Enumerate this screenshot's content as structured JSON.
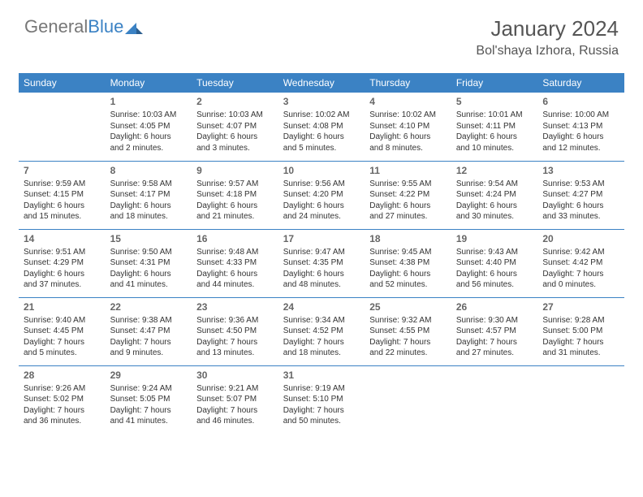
{
  "brand": {
    "part1": "General",
    "part2": "Blue"
  },
  "title": "January 2024",
  "location": "Bol'shaya Izhora, Russia",
  "colors": {
    "accent": "#3b82c4",
    "text": "#333333",
    "muted": "#666666",
    "bg": "#ffffff"
  },
  "weekdays": [
    "Sunday",
    "Monday",
    "Tuesday",
    "Wednesday",
    "Thursday",
    "Friday",
    "Saturday"
  ],
  "weeks": [
    [
      null,
      {
        "d": "1",
        "sr": "Sunrise: 10:03 AM",
        "ss": "Sunset: 4:05 PM",
        "dl1": "Daylight: 6 hours",
        "dl2": "and 2 minutes."
      },
      {
        "d": "2",
        "sr": "Sunrise: 10:03 AM",
        "ss": "Sunset: 4:07 PM",
        "dl1": "Daylight: 6 hours",
        "dl2": "and 3 minutes."
      },
      {
        "d": "3",
        "sr": "Sunrise: 10:02 AM",
        "ss": "Sunset: 4:08 PM",
        "dl1": "Daylight: 6 hours",
        "dl2": "and 5 minutes."
      },
      {
        "d": "4",
        "sr": "Sunrise: 10:02 AM",
        "ss": "Sunset: 4:10 PM",
        "dl1": "Daylight: 6 hours",
        "dl2": "and 8 minutes."
      },
      {
        "d": "5",
        "sr": "Sunrise: 10:01 AM",
        "ss": "Sunset: 4:11 PM",
        "dl1": "Daylight: 6 hours",
        "dl2": "and 10 minutes."
      },
      {
        "d": "6",
        "sr": "Sunrise: 10:00 AM",
        "ss": "Sunset: 4:13 PM",
        "dl1": "Daylight: 6 hours",
        "dl2": "and 12 minutes."
      }
    ],
    [
      {
        "d": "7",
        "sr": "Sunrise: 9:59 AM",
        "ss": "Sunset: 4:15 PM",
        "dl1": "Daylight: 6 hours",
        "dl2": "and 15 minutes."
      },
      {
        "d": "8",
        "sr": "Sunrise: 9:58 AM",
        "ss": "Sunset: 4:17 PM",
        "dl1": "Daylight: 6 hours",
        "dl2": "and 18 minutes."
      },
      {
        "d": "9",
        "sr": "Sunrise: 9:57 AM",
        "ss": "Sunset: 4:18 PM",
        "dl1": "Daylight: 6 hours",
        "dl2": "and 21 minutes."
      },
      {
        "d": "10",
        "sr": "Sunrise: 9:56 AM",
        "ss": "Sunset: 4:20 PM",
        "dl1": "Daylight: 6 hours",
        "dl2": "and 24 minutes."
      },
      {
        "d": "11",
        "sr": "Sunrise: 9:55 AM",
        "ss": "Sunset: 4:22 PM",
        "dl1": "Daylight: 6 hours",
        "dl2": "and 27 minutes."
      },
      {
        "d": "12",
        "sr": "Sunrise: 9:54 AM",
        "ss": "Sunset: 4:24 PM",
        "dl1": "Daylight: 6 hours",
        "dl2": "and 30 minutes."
      },
      {
        "d": "13",
        "sr": "Sunrise: 9:53 AM",
        "ss": "Sunset: 4:27 PM",
        "dl1": "Daylight: 6 hours",
        "dl2": "and 33 minutes."
      }
    ],
    [
      {
        "d": "14",
        "sr": "Sunrise: 9:51 AM",
        "ss": "Sunset: 4:29 PM",
        "dl1": "Daylight: 6 hours",
        "dl2": "and 37 minutes."
      },
      {
        "d": "15",
        "sr": "Sunrise: 9:50 AM",
        "ss": "Sunset: 4:31 PM",
        "dl1": "Daylight: 6 hours",
        "dl2": "and 41 minutes."
      },
      {
        "d": "16",
        "sr": "Sunrise: 9:48 AM",
        "ss": "Sunset: 4:33 PM",
        "dl1": "Daylight: 6 hours",
        "dl2": "and 44 minutes."
      },
      {
        "d": "17",
        "sr": "Sunrise: 9:47 AM",
        "ss": "Sunset: 4:35 PM",
        "dl1": "Daylight: 6 hours",
        "dl2": "and 48 minutes."
      },
      {
        "d": "18",
        "sr": "Sunrise: 9:45 AM",
        "ss": "Sunset: 4:38 PM",
        "dl1": "Daylight: 6 hours",
        "dl2": "and 52 minutes."
      },
      {
        "d": "19",
        "sr": "Sunrise: 9:43 AM",
        "ss": "Sunset: 4:40 PM",
        "dl1": "Daylight: 6 hours",
        "dl2": "and 56 minutes."
      },
      {
        "d": "20",
        "sr": "Sunrise: 9:42 AM",
        "ss": "Sunset: 4:42 PM",
        "dl1": "Daylight: 7 hours",
        "dl2": "and 0 minutes."
      }
    ],
    [
      {
        "d": "21",
        "sr": "Sunrise: 9:40 AM",
        "ss": "Sunset: 4:45 PM",
        "dl1": "Daylight: 7 hours",
        "dl2": "and 5 minutes."
      },
      {
        "d": "22",
        "sr": "Sunrise: 9:38 AM",
        "ss": "Sunset: 4:47 PM",
        "dl1": "Daylight: 7 hours",
        "dl2": "and 9 minutes."
      },
      {
        "d": "23",
        "sr": "Sunrise: 9:36 AM",
        "ss": "Sunset: 4:50 PM",
        "dl1": "Daylight: 7 hours",
        "dl2": "and 13 minutes."
      },
      {
        "d": "24",
        "sr": "Sunrise: 9:34 AM",
        "ss": "Sunset: 4:52 PM",
        "dl1": "Daylight: 7 hours",
        "dl2": "and 18 minutes."
      },
      {
        "d": "25",
        "sr": "Sunrise: 9:32 AM",
        "ss": "Sunset: 4:55 PM",
        "dl1": "Daylight: 7 hours",
        "dl2": "and 22 minutes."
      },
      {
        "d": "26",
        "sr": "Sunrise: 9:30 AM",
        "ss": "Sunset: 4:57 PM",
        "dl1": "Daylight: 7 hours",
        "dl2": "and 27 minutes."
      },
      {
        "d": "27",
        "sr": "Sunrise: 9:28 AM",
        "ss": "Sunset: 5:00 PM",
        "dl1": "Daylight: 7 hours",
        "dl2": "and 31 minutes."
      }
    ],
    [
      {
        "d": "28",
        "sr": "Sunrise: 9:26 AM",
        "ss": "Sunset: 5:02 PM",
        "dl1": "Daylight: 7 hours",
        "dl2": "and 36 minutes."
      },
      {
        "d": "29",
        "sr": "Sunrise: 9:24 AM",
        "ss": "Sunset: 5:05 PM",
        "dl1": "Daylight: 7 hours",
        "dl2": "and 41 minutes."
      },
      {
        "d": "30",
        "sr": "Sunrise: 9:21 AM",
        "ss": "Sunset: 5:07 PM",
        "dl1": "Daylight: 7 hours",
        "dl2": "and 46 minutes."
      },
      {
        "d": "31",
        "sr": "Sunrise: 9:19 AM",
        "ss": "Sunset: 5:10 PM",
        "dl1": "Daylight: 7 hours",
        "dl2": "and 50 minutes."
      },
      null,
      null,
      null
    ]
  ]
}
